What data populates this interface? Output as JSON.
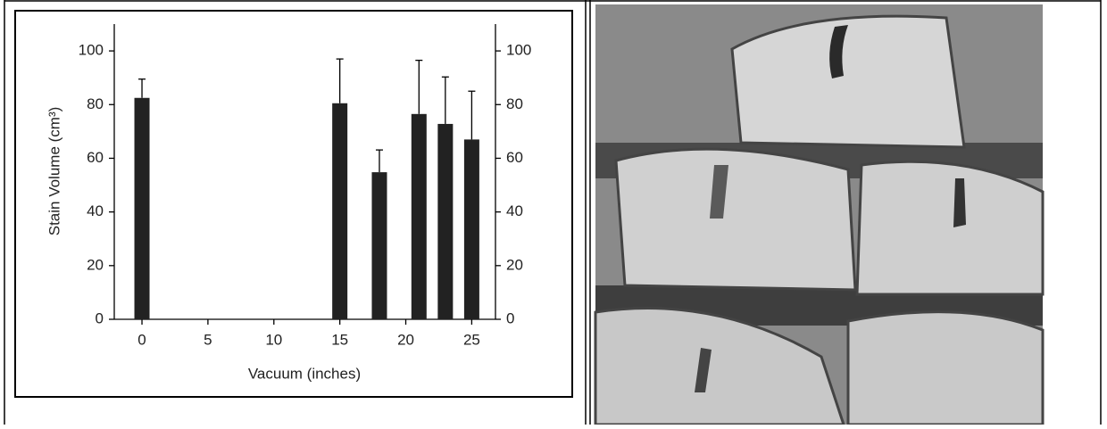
{
  "chart_data": {
    "type": "bar",
    "x_label": "Vacuum (inches)",
    "y_label": "Stain Volume (cm³)",
    "x": [
      0,
      15,
      18,
      21,
      23,
      25
    ],
    "values": [
      82.5,
      80.5,
      54.8,
      76.5,
      72.8,
      67
    ],
    "errors": [
      7,
      16.5,
      8.3,
      20,
      17.5,
      18
    ],
    "color": "#222222",
    "xlim": [
      -2.1,
      26.8
    ],
    "xticks": [
      0,
      5,
      10,
      15,
      20,
      25
    ],
    "ylim": [
      0,
      110
    ],
    "yticks": [
      0,
      20,
      40,
      60,
      80,
      100
    ],
    "y2lim": [
      0,
      110
    ],
    "y2ticks": [
      0,
      20,
      40,
      60,
      80,
      100
    ]
  }
}
